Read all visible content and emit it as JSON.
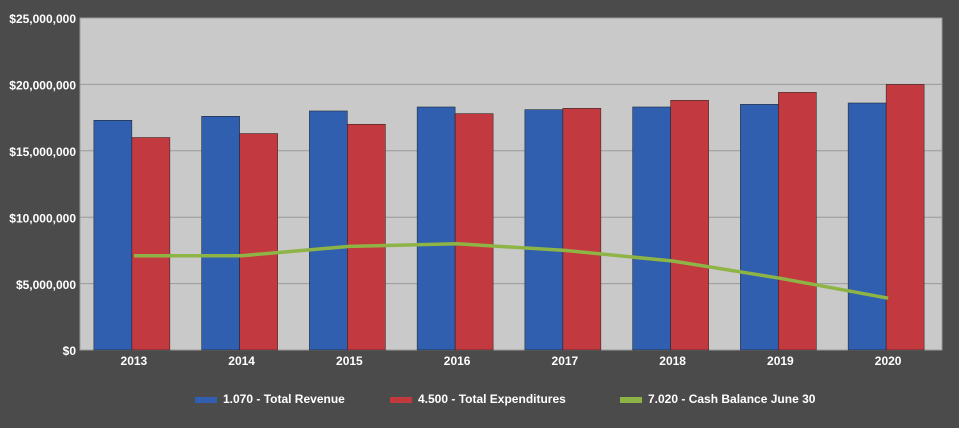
{
  "chart_data": {
    "type": "bar-line",
    "categories": [
      "2013",
      "2014",
      "2015",
      "2016",
      "2017",
      "2018",
      "2019",
      "2020"
    ],
    "series": [
      {
        "name": "1.070 - Total Revenue",
        "type": "bar",
        "color": "#2f5fae",
        "values": [
          17300000,
          17600000,
          18000000,
          18300000,
          18100000,
          18300000,
          18500000,
          18600000
        ]
      },
      {
        "name": "4.500 - Total Expenditures",
        "type": "bar",
        "color": "#c23a40",
        "values": [
          16000000,
          16300000,
          17000000,
          17800000,
          18200000,
          18800000,
          19400000,
          20000000
        ]
      },
      {
        "name": "7.020 - Cash Balance June 30",
        "type": "line",
        "color": "#8fb446",
        "values": [
          7100000,
          7100000,
          7800000,
          8000000,
          7500000,
          6700000,
          5400000,
          3900000
        ]
      }
    ],
    "ylim": [
      0,
      25000000
    ],
    "yticks": [
      {
        "value": 0,
        "label": "$0"
      },
      {
        "value": 5000000,
        "label": "$5,000,000"
      },
      {
        "value": 10000000,
        "label": "$10,000,000"
      },
      {
        "value": 15000000,
        "label": "$15,000,000"
      },
      {
        "value": 20000000,
        "label": "$20,000,000"
      },
      {
        "value": 25000000,
        "label": "$25,000,000"
      }
    ],
    "grid": true,
    "legend": "bottom"
  }
}
